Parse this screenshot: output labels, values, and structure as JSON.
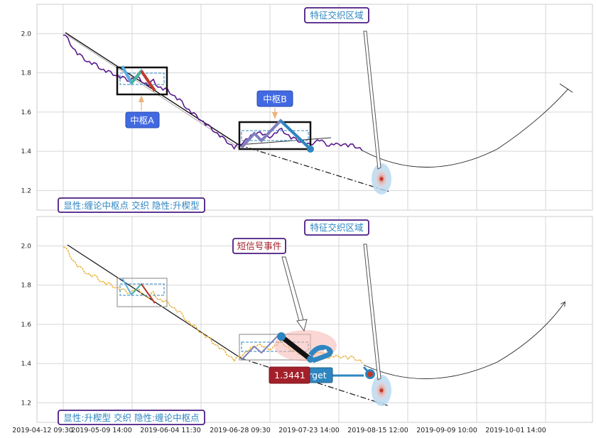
{
  "chart_data": [
    {
      "type": "line",
      "title": "",
      "ylim": [
        1.1,
        2.15
      ],
      "yticks": [
        "1.2",
        "1.4",
        "1.6",
        "1.8",
        "2.0"
      ],
      "ytick_values": [
        1.2,
        1.4,
        1.6,
        1.8,
        2.0
      ],
      "grid": true,
      "series": [
        {
          "values": [
            2.0,
            1.97,
            1.93,
            1.9,
            1.88,
            1.86,
            1.85,
            1.84,
            1.82,
            1.81,
            1.8,
            1.79,
            1.78,
            1.77,
            1.76,
            1.78,
            1.77,
            1.75,
            1.74,
            1.76,
            1.73,
            1.72,
            1.71,
            1.69,
            1.67,
            1.65,
            1.62,
            1.6,
            1.58,
            1.56,
            1.54,
            1.52,
            1.5,
            1.48,
            1.46,
            1.44,
            1.42,
            1.43,
            1.45,
            1.47,
            1.48,
            1.5,
            1.49,
            1.47,
            1.48,
            1.5,
            1.51,
            1.49,
            1.47,
            1.46,
            1.45,
            1.44,
            1.43,
            1.45,
            1.46,
            1.44,
            1.43,
            1.44,
            1.43,
            1.44,
            1.43,
            1.43,
            1.42,
            1.41
          ]
        }
      ],
      "annotations": {
        "zone_label": "特征交织区域",
        "pivot_a": "中枢A",
        "pivot_b": "中枢B",
        "caption": "显性:缠论中枢点 交织 隐性:升楔型"
      }
    },
    {
      "type": "line",
      "title": "",
      "ylim": [
        1.1,
        2.15
      ],
      "yticks": [
        "1.2",
        "1.4",
        "1.6",
        "1.8",
        "2.0"
      ],
      "ytick_values": [
        1.2,
        1.4,
        1.6,
        1.8,
        2.0
      ],
      "grid": true,
      "x_tick_labels": [
        "2019-04-12 09:30",
        "2019-05-09 14:00",
        "2019-06-04 11:30",
        "2019-06-28 09:30",
        "2019-07-23 14:00",
        "2019-08-15 12:00",
        "2019-09-09 10:00",
        "2019-10-01 14:00"
      ],
      "series": [
        {
          "values": [
            2.0,
            1.97,
            1.93,
            1.9,
            1.88,
            1.86,
            1.85,
            1.84,
            1.82,
            1.81,
            1.8,
            1.79,
            1.78,
            1.77,
            1.76,
            1.78,
            1.77,
            1.75,
            1.74,
            1.76,
            1.73,
            1.72,
            1.71,
            1.69,
            1.67,
            1.65,
            1.62,
            1.6,
            1.58,
            1.56,
            1.54,
            1.52,
            1.5,
            1.48,
            1.46,
            1.44,
            1.42,
            1.43,
            1.45,
            1.47,
            1.48,
            1.5,
            1.49,
            1.47,
            1.48,
            1.5,
            1.51,
            1.49,
            1.47,
            1.46,
            1.45,
            1.44,
            1.43,
            1.45,
            1.46,
            1.44,
            1.43,
            1.44,
            1.43,
            1.44,
            1.43,
            1.43,
            1.42,
            1.41
          ]
        }
      ],
      "annotations": {
        "zone_label": "特征交织区域",
        "signal_label": "短信号事件",
        "price_badge": "1.3441",
        "target_badge": "rget",
        "caption": "显性:升楔型 交织 隐性:缠论中枢点"
      }
    }
  ],
  "colors": {
    "price_top": "#5b1a8c",
    "price_bottom": "#e8b33a",
    "label_border": "#4b1d84",
    "label_text": "#2e86c1",
    "pivot_badge": "#4169e1",
    "price_badge": "#a3202a",
    "target_badge": "#2e86c1",
    "grid": "#cccccc"
  }
}
